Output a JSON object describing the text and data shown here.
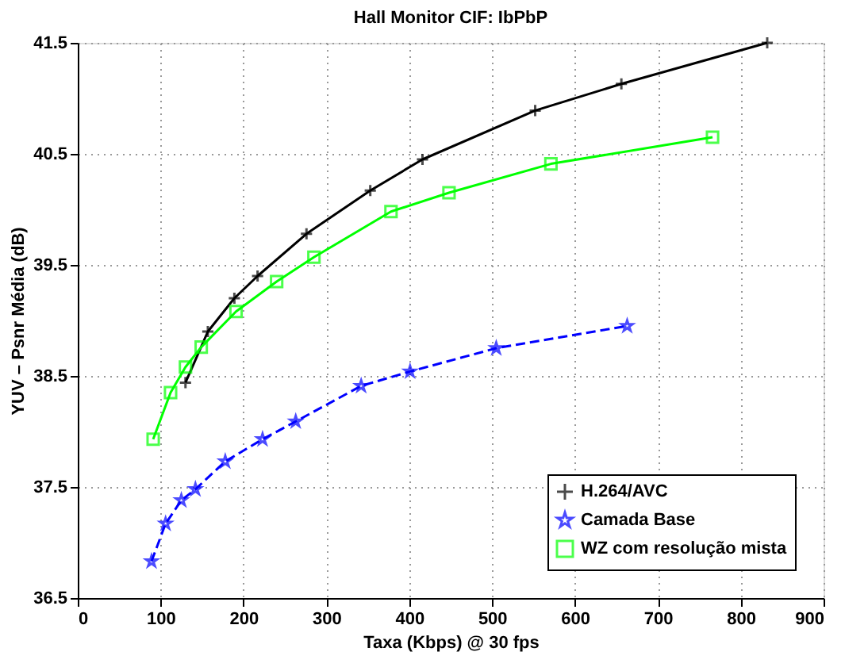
{
  "chart_data": {
    "type": "line",
    "title": "Hall Monitor CIF: IbPbP",
    "xlabel": "Taxa (Kbps) @ 30 fps",
    "ylabel": "YUV – Psnr Média (dB)",
    "xlim": [
      0,
      900
    ],
    "xticks": [
      0,
      100,
      200,
      300,
      400,
      500,
      600,
      700,
      800,
      900
    ],
    "ylim": [
      36.5,
      41.5
    ],
    "yticks": [
      36.5,
      37.5,
      38.5,
      39.5,
      40.5,
      41.5
    ],
    "grid": true,
    "legend": "bottom right",
    "series": [
      {
        "name": "H.264/AVC",
        "color": "#000000",
        "marker": "cross",
        "line_style": "solid",
        "x": [
          130,
          157,
          189,
          217,
          276,
          353,
          416,
          552,
          656,
          832
        ],
        "values": [
          38.44,
          38.9,
          39.2,
          39.4,
          39.78,
          40.17,
          40.45,
          40.89,
          41.13,
          41.5
        ]
      },
      {
        "name": "Camada Base",
        "color": "#0000ff",
        "marker": "star",
        "line_style": "dashed",
        "x": [
          89,
          106,
          125,
          142,
          178,
          223,
          263,
          342,
          401,
          505,
          663
        ],
        "values": [
          36.83,
          37.17,
          37.38,
          37.48,
          37.73,
          37.93,
          38.09,
          38.41,
          38.54,
          38.75,
          38.95
        ]
      },
      {
        "name": "WZ com resolução mista",
        "color": "#00ff00",
        "marker": "square",
        "line_style": "solid",
        "x": [
          91,
          112,
          130,
          149,
          191,
          240,
          285,
          378,
          448,
          571,
          766
        ],
        "values": [
          37.93,
          38.35,
          38.58,
          38.76,
          39.08,
          39.35,
          39.57,
          39.98,
          40.15,
          40.41,
          40.65
        ]
      }
    ]
  }
}
